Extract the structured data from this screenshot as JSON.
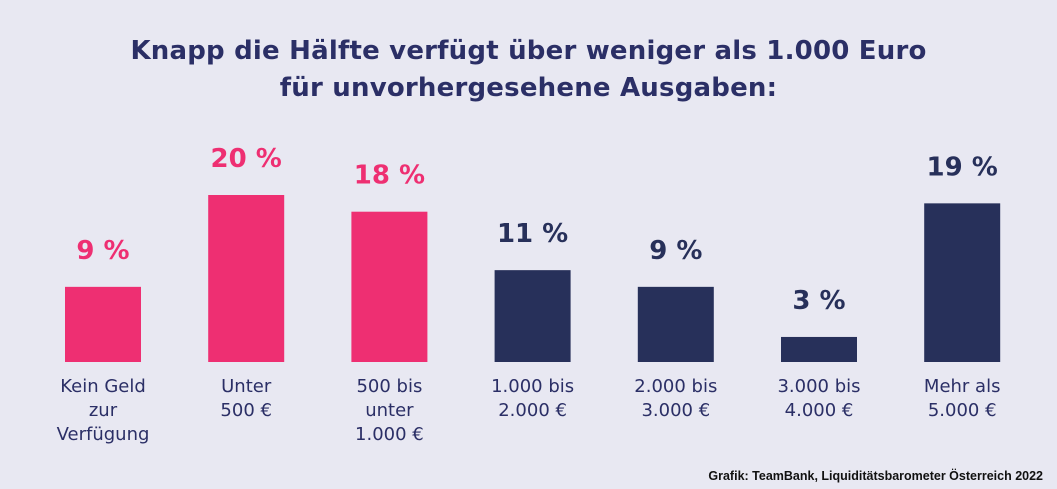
{
  "title_line1": "Knapp die Hälfte verfügt über weniger als 1.000 Euro",
  "title_line2": "für unvorhergesehene Ausgaben:",
  "source": "Grafik: TeamBank, Liquiditätsbarometer Österreich 2022",
  "colors": {
    "pink": "#ee2f72",
    "navy": "#27305a",
    "background": "#e8e8f2"
  },
  "chart_data": {
    "type": "bar",
    "categories": [
      [
        "Kein Geld",
        "zur",
        "Verfügung"
      ],
      [
        "Unter",
        "500 €"
      ],
      [
        "500 bis",
        "unter",
        "1.000 €"
      ],
      [
        "1.000 bis",
        "2.000 €"
      ],
      [
        "2.000 bis",
        "3.000 €"
      ],
      [
        "3.000 bis",
        "4.000 €"
      ],
      [
        "Mehr als",
        "5.000 €"
      ]
    ],
    "values": [
      9,
      20,
      18,
      11,
      9,
      3,
      19
    ],
    "value_labels": [
      "9 %",
      "20 %",
      "18 %",
      "11 %",
      "9 %",
      "3 %",
      "19 %"
    ],
    "bar_colors": [
      "pink",
      "pink",
      "pink",
      "navy",
      "navy",
      "navy",
      "navy"
    ],
    "title": "Knapp die Hälfte verfügt über weniger als 1.000 Euro für unvorhergesehene Ausgaben:",
    "xlabel": "",
    "ylabel": "",
    "grid": false
  }
}
